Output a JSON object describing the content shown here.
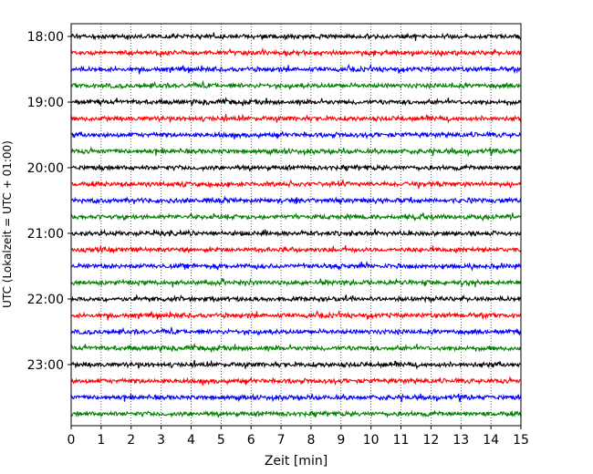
{
  "chart_data": {
    "type": "line",
    "xlabel": "Zeit  [min]",
    "ylabel": "UTC (Lokalzeit = UTC + 01:00)",
    "xlim": [
      0,
      15
    ],
    "xticks": [
      "0",
      "1",
      "2",
      "3",
      "4",
      "5",
      "6",
      "7",
      "8",
      "9",
      "10",
      "11",
      "12",
      "13",
      "14",
      "15"
    ],
    "yticks": [
      "18:00",
      "19:00",
      "20:00",
      "21:00",
      "22:00",
      "23:00"
    ],
    "grid": "vertical dotted at each minute",
    "series_colors": [
      "#000000",
      "#ff0000",
      "#0000ff",
      "#008000"
    ],
    "traces": [
      {
        "start": "18:00",
        "color": "#000000"
      },
      {
        "start": "18:15",
        "color": "#ff0000"
      },
      {
        "start": "18:30",
        "color": "#0000ff"
      },
      {
        "start": "18:45",
        "color": "#008000"
      },
      {
        "start": "19:00",
        "color": "#000000"
      },
      {
        "start": "19:15",
        "color": "#ff0000"
      },
      {
        "start": "19:30",
        "color": "#0000ff"
      },
      {
        "start": "19:45",
        "color": "#008000"
      },
      {
        "start": "20:00",
        "color": "#000000"
      },
      {
        "start": "20:15",
        "color": "#ff0000"
      },
      {
        "start": "20:30",
        "color": "#0000ff"
      },
      {
        "start": "20:45",
        "color": "#008000"
      },
      {
        "start": "21:00",
        "color": "#000000"
      },
      {
        "start": "21:15",
        "color": "#ff0000"
      },
      {
        "start": "21:30",
        "color": "#0000ff"
      },
      {
        "start": "21:45",
        "color": "#008000"
      },
      {
        "start": "22:00",
        "color": "#000000"
      },
      {
        "start": "22:15",
        "color": "#ff0000"
      },
      {
        "start": "22:30",
        "color": "#0000ff"
      },
      {
        "start": "22:45",
        "color": "#008000"
      },
      {
        "start": "23:00",
        "color": "#000000"
      },
      {
        "start": "23:15",
        "color": "#ff0000"
      },
      {
        "start": "23:30",
        "color": "#0000ff"
      },
      {
        "start": "23:45",
        "color": "#008000"
      }
    ]
  }
}
